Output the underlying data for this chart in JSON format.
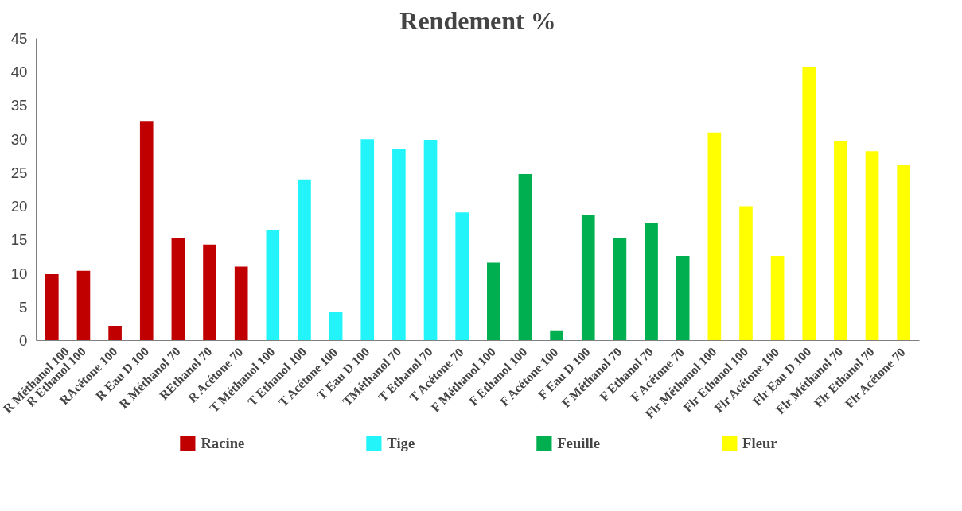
{
  "chart_data": {
    "type": "bar",
    "title": "Rendement %",
    "categories": [
      "R Méthanol 100",
      "R Ethanol 100",
      "RAcétone 100",
      "R Eau D 100",
      "R Méthanol 70",
      "REthanol 70",
      "R Acétone 70",
      "T Méthanol 100",
      "T Ethanol 100",
      "T Acétone 100",
      "T Eau D 100",
      "TMéthanol 70",
      "T Ethanol 70",
      "T Acétone 70",
      "F Méthanol 100",
      "F Ethanol 100",
      "F Acétone 100",
      "F Eau D 100",
      "F Méthanol 70",
      "F Ethanol 70",
      "F Acétone 70",
      "Flr Méthanol 100",
      "Flr Ethanol 100",
      "Flr Acétone 100",
      "Flr Eau D 100",
      "Flr Méthanol 70",
      "Flr Ethanol 70",
      "Flr Acétone 70"
    ],
    "series": [
      {
        "name": "Racine",
        "color": "#c00000",
        "values": [
          9.9,
          10.4,
          2.2,
          32.7,
          15.3,
          14.3,
          11.0,
          null,
          null,
          null,
          null,
          null,
          null,
          null,
          null,
          null,
          null,
          null,
          null,
          null,
          null,
          null,
          null,
          null,
          null,
          null,
          null,
          null
        ]
      },
      {
        "name": "Tige",
        "color": "#22f4fa",
        "values": [
          null,
          null,
          null,
          null,
          null,
          null,
          null,
          16.5,
          24.0,
          4.3,
          30.0,
          28.5,
          29.9,
          19.1,
          null,
          null,
          null,
          null,
          null,
          null,
          null,
          null,
          null,
          null,
          null,
          null,
          null,
          null
        ]
      },
      {
        "name": "Feuille",
        "color": "#00b050",
        "values": [
          null,
          null,
          null,
          null,
          null,
          null,
          null,
          null,
          null,
          null,
          null,
          null,
          null,
          null,
          11.6,
          24.8,
          1.5,
          18.7,
          15.3,
          17.6,
          12.6,
          null,
          null,
          null,
          null,
          null,
          null,
          null
        ]
      },
      {
        "name": "Fleur",
        "color": "#ffff00",
        "values": [
          null,
          null,
          null,
          null,
          null,
          null,
          null,
          null,
          null,
          null,
          null,
          null,
          null,
          null,
          null,
          null,
          null,
          null,
          null,
          null,
          null,
          31.0,
          20.0,
          12.6,
          40.8,
          29.7,
          28.2,
          26.2
        ]
      }
    ],
    "ylim": [
      0,
      45
    ],
    "yticks": [
      0,
      5,
      10,
      15,
      20,
      25,
      30,
      35,
      40,
      45
    ],
    "grid": false,
    "legend": "bottom"
  }
}
